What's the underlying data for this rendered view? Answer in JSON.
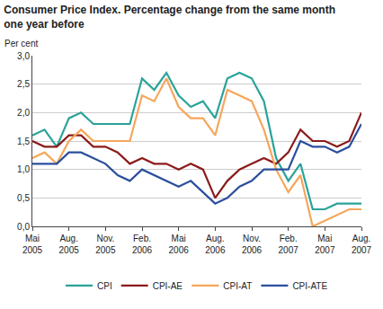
{
  "chart_data": {
    "type": "line",
    "title": "Consumer Price Index. Percentage change from the same month\none year before",
    "ylabel": "Per cent",
    "categories": [
      "Mai\n2005",
      null,
      null,
      "Aug.\n2005",
      null,
      null,
      "Nov.\n2005",
      null,
      null,
      "Feb.\n2006",
      null,
      null,
      "Mai\n2006",
      null,
      null,
      "Aug.\n2006",
      null,
      null,
      "Nov.\n2006",
      null,
      null,
      "Feb.\n2007",
      null,
      null,
      "Mai\n2007",
      null,
      null,
      "Aug.\n2007"
    ],
    "series": [
      {
        "name": "CPI",
        "color": "#2aa39a",
        "values": [
          1.6,
          1.7,
          1.4,
          1.9,
          2.0,
          1.8,
          1.8,
          1.8,
          1.8,
          2.6,
          2.4,
          2.7,
          2.3,
          2.1,
          2.2,
          1.9,
          2.6,
          2.7,
          2.6,
          2.2,
          1.2,
          0.8,
          1.1,
          0.3,
          0.3,
          0.4,
          0.4,
          0.4
        ]
      },
      {
        "name": "CPI-AE",
        "color": "#8b1a1a",
        "values": [
          1.5,
          1.4,
          1.4,
          1.6,
          1.6,
          1.4,
          1.4,
          1.3,
          1.1,
          1.2,
          1.1,
          1.1,
          1.0,
          1.1,
          1.0,
          0.5,
          0.8,
          1.0,
          1.1,
          1.2,
          1.1,
          1.3,
          1.7,
          1.5,
          1.5,
          1.4,
          1.5,
          2.0
        ]
      },
      {
        "name": "CPI-AT",
        "color": "#f5a65b",
        "values": [
          1.2,
          1.3,
          1.1,
          1.5,
          1.7,
          1.5,
          1.5,
          1.5,
          1.5,
          2.3,
          2.2,
          2.6,
          2.1,
          1.9,
          1.9,
          1.6,
          2.4,
          2.3,
          2.2,
          1.7,
          1.0,
          0.6,
          0.9,
          0.0,
          0.1,
          0.2,
          0.3,
          0.3
        ]
      },
      {
        "name": "CPI-ATE",
        "color": "#2b4f9e",
        "values": [
          1.1,
          1.1,
          1.1,
          1.3,
          1.3,
          1.2,
          1.1,
          0.9,
          0.8,
          1.0,
          0.9,
          0.8,
          0.7,
          0.8,
          0.6,
          0.4,
          0.5,
          0.7,
          0.8,
          1.0,
          1.0,
          1.0,
          1.5,
          1.4,
          1.4,
          1.3,
          1.4,
          1.8
        ]
      }
    ],
    "ylim": [
      0,
      3
    ],
    "yticks": [
      {
        "value": 0,
        "label": "0,0"
      },
      {
        "value": 0.5,
        "label": "0,5"
      },
      {
        "value": 1,
        "label": "1,0"
      },
      {
        "value": 1.5,
        "label": "1,5"
      },
      {
        "value": 2,
        "label": "2,0"
      },
      {
        "value": 2.5,
        "label": "2,5"
      },
      {
        "value": 3,
        "label": "3,0"
      }
    ],
    "grid": true,
    "legend": "bottom"
  }
}
